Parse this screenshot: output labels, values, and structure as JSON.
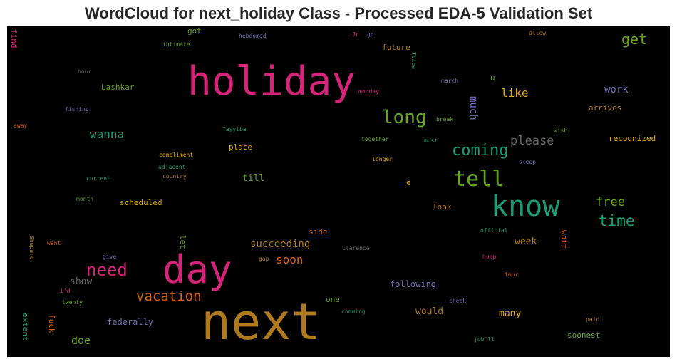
{
  "title": "WordCloud for next_holiday Class - Processed EDA-5 Validation Set",
  "chart_data": {
    "type": "wordcloud",
    "background": "#000000",
    "words": [
      {
        "text": "next",
        "color": "#b07a1e"
      },
      {
        "text": "holiday",
        "color": "#d6247a"
      },
      {
        "text": "day",
        "color": "#d6247a"
      },
      {
        "text": "know",
        "color": "#1b9e77"
      },
      {
        "text": "tell",
        "color": "#66a61e"
      },
      {
        "text": "long",
        "color": "#66a61e"
      },
      {
        "text": "need",
        "color": "#d6247a"
      },
      {
        "text": "coming",
        "color": "#1b9e77"
      },
      {
        "text": "vacation",
        "color": "#d95f02"
      },
      {
        "text": "time",
        "color": "#1b9e77"
      },
      {
        "text": "get",
        "color": "#66a61e"
      },
      {
        "text": "please",
        "color": "#666666"
      },
      {
        "text": "free",
        "color": "#66a61e"
      },
      {
        "text": "like",
        "color": "#e6ab02"
      },
      {
        "text": "wanna",
        "color": "#1b9e77"
      },
      {
        "text": "soon",
        "color": "#d95f02"
      },
      {
        "text": "succeeding",
        "color": "#b07a1e"
      },
      {
        "text": "doe",
        "color": "#66a61e"
      },
      {
        "text": "much",
        "color": "#7570b3"
      },
      {
        "text": "work",
        "color": "#7570b3"
      },
      {
        "text": "show",
        "color": "#666666"
      },
      {
        "text": "many",
        "color": "#e6ab02"
      },
      {
        "text": "would",
        "color": "#b07a1e"
      },
      {
        "text": "week",
        "color": "#b07a1e"
      },
      {
        "text": "till",
        "color": "#66a61e"
      },
      {
        "text": "federally",
        "color": "#7570b3"
      },
      {
        "text": "following",
        "color": "#7570b3"
      },
      {
        "text": "scheduled",
        "color": "#e6ab02"
      },
      {
        "text": "Lashkar",
        "color": "#66a61e"
      },
      {
        "text": "wait",
        "color": "#d95f02"
      },
      {
        "text": "let",
        "color": "#66a61e"
      },
      {
        "text": "place",
        "color": "#e6ab02"
      },
      {
        "text": "recognized",
        "color": "#e6ab02"
      },
      {
        "text": "arrives",
        "color": "#b07a1e"
      },
      {
        "text": "future",
        "color": "#b07a1e"
      },
      {
        "text": "extent",
        "color": "#1b9e77"
      },
      {
        "text": "fuck",
        "color": "#d95f02"
      },
      {
        "text": "soonest",
        "color": "#66a61e"
      },
      {
        "text": "side",
        "color": "#d95f02"
      },
      {
        "text": "look",
        "color": "#b07a1e"
      },
      {
        "text": "one",
        "color": "#66a61e"
      },
      {
        "text": "find",
        "color": "#d6247a"
      },
      {
        "text": "got",
        "color": "#66a61e"
      },
      {
        "text": "u",
        "color": "#66a61e"
      },
      {
        "text": "e",
        "color": "#e6ab02"
      },
      {
        "text": "hebdomad",
        "color": "#7570b3"
      },
      {
        "text": "Jr",
        "color": "#d6247a"
      },
      {
        "text": "go",
        "color": "#7570b3"
      },
      {
        "text": "allow",
        "color": "#b07a1e"
      },
      {
        "text": "intimate",
        "color": "#66a61e"
      },
      {
        "text": "Toiba",
        "color": "#1b9e77"
      },
      {
        "text": "hour",
        "color": "#666666"
      },
      {
        "text": "march",
        "color": "#7570b3"
      },
      {
        "text": "monday",
        "color": "#d6247a"
      },
      {
        "text": "fishing",
        "color": "#7570b3"
      },
      {
        "text": "away",
        "color": "#d95f02"
      },
      {
        "text": "Tayyiba",
        "color": "#1b9e77"
      },
      {
        "text": "break",
        "color": "#66a61e"
      },
      {
        "text": "wish",
        "color": "#66a61e"
      },
      {
        "text": "together",
        "color": "#66a61e"
      },
      {
        "text": "must",
        "color": "#1b9e77"
      },
      {
        "text": "compliment",
        "color": "#e6ab02"
      },
      {
        "text": "adjacent",
        "color": "#1b9e77"
      },
      {
        "text": "country",
        "color": "#b07a1e"
      },
      {
        "text": "longer",
        "color": "#e6ab02"
      },
      {
        "text": "sleep",
        "color": "#7570b3"
      },
      {
        "text": "current",
        "color": "#1b9e77"
      },
      {
        "text": "month",
        "color": "#66a61e"
      },
      {
        "text": "Shepard",
        "color": "#b07a1e"
      },
      {
        "text": "want",
        "color": "#d95f02"
      },
      {
        "text": "official",
        "color": "#1b9e77"
      },
      {
        "text": "give",
        "color": "#7570b3"
      },
      {
        "text": "gap",
        "color": "#b07a1e"
      },
      {
        "text": "Clarence",
        "color": "#666666"
      },
      {
        "text": "hump",
        "color": "#d6247a"
      },
      {
        "text": "four",
        "color": "#d95f02"
      },
      {
        "text": "i'd",
        "color": "#d6247a"
      },
      {
        "text": "twenty",
        "color": "#66a61e"
      },
      {
        "text": "comming",
        "color": "#1b9e77"
      },
      {
        "text": "check",
        "color": "#7570b3"
      },
      {
        "text": "paid",
        "color": "#b07a1e"
      },
      {
        "text": "job'll",
        "color": "#1b9e77"
      }
    ]
  }
}
